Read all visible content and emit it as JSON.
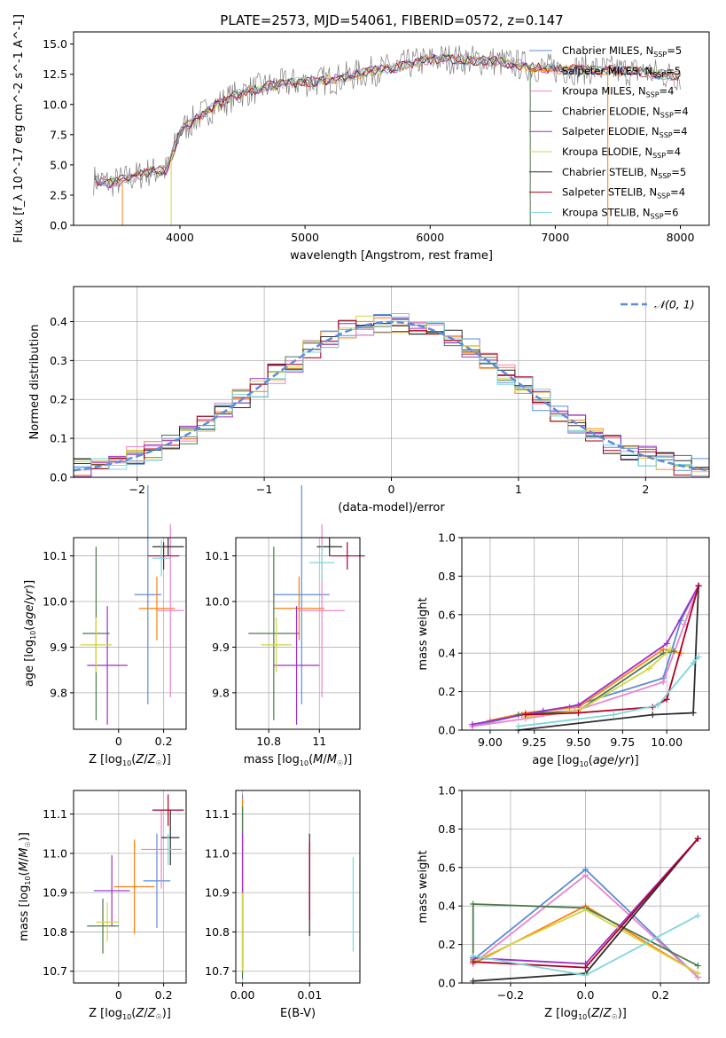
{
  "figure_title": "PLATE=2573, MJD=54061, FIBERID=0572, z=0.147",
  "colors": {
    "model_colors": [
      "#5b8dd9",
      "#ff7f0e",
      "#ee82c8",
      "#4c7a4c",
      "#9b30c8",
      "#d4d445",
      "#2d2d2d",
      "#b00020",
      "#7fd6dc"
    ],
    "data_color": "#7f7f7f",
    "gauss_color": "#5b8dd9"
  },
  "chart_data": [
    {
      "id": "spectrum",
      "type": "line",
      "xlabel": "wavelength [Angstrom, rest frame]",
      "ylabel": "Flux [f_λ 10^-17 erg cm^-2 s^-1 A^-1]",
      "xlim": [
        3150,
        8230
      ],
      "ylim": [
        0,
        16
      ],
      "xticks": [
        4000,
        5000,
        6000,
        7000,
        8000
      ],
      "yticks": [
        0.0,
        2.5,
        5.0,
        7.5,
        10.0,
        12.5,
        15.0
      ],
      "grid": false,
      "legend_position": "top-right",
      "legend": [
        {
          "base": "Chabrier MILES, N",
          "sub": "SSP",
          "tail": "=5"
        },
        {
          "base": "Salpeter MILES, N",
          "sub": "SSP",
          "tail": "=5"
        },
        {
          "base": "Kroupa MILES, N",
          "sub": "SSP",
          "tail": "=4"
        },
        {
          "base": "Chabrier ELODIE, N",
          "sub": "SSP",
          "tail": "=4"
        },
        {
          "base": "Salpeter ELODIE, N",
          "sub": "SSP",
          "tail": "=4"
        },
        {
          "base": "Kroupa ELODIE, N",
          "sub": "SSP",
          "tail": "=4"
        },
        {
          "base": "Chabrier STELIB, N",
          "sub": "SSP",
          "tail": "=5"
        },
        {
          "base": "Salpeter STELIB, N",
          "sub": "SSP",
          "tail": "=4"
        },
        {
          "base": "Kroupa STELIB, N",
          "sub": "SSP",
          "tail": "=6"
        }
      ],
      "continuum": {
        "x": [
          3300,
          3450,
          3600,
          3750,
          3900,
          4000,
          4150,
          4300,
          4500,
          4700,
          4900,
          5100,
          5300,
          5500,
          5700,
          5900,
          6100,
          6300,
          6500,
          6700,
          6900,
          7100,
          7300,
          7500,
          7700,
          7850,
          8000
        ],
        "y": [
          3.8,
          3.5,
          3.9,
          4.4,
          4.6,
          7.8,
          9.0,
          10.0,
          11.0,
          11.5,
          11.8,
          11.9,
          12.2,
          12.7,
          13.0,
          13.5,
          13.8,
          13.7,
          13.6,
          13.3,
          13.0,
          12.9,
          12.9,
          12.8,
          12.7,
          12.5,
          12.3
        ]
      }
    },
    {
      "id": "residuals",
      "type": "area",
      "xlabel": "(data-model)/error",
      "ylabel": "Normed distribution",
      "xlim": [
        -2.5,
        2.5
      ],
      "ylim": [
        0,
        0.49
      ],
      "xticks": [
        -2,
        -1,
        0,
        1,
        2
      ],
      "yticks": [
        0.0,
        0.1,
        0.2,
        0.3,
        0.4
      ],
      "grid": true,
      "legend_position": "top-right",
      "legend_label": "𝒩(0, 1)",
      "histogram_bins": 36
    },
    {
      "id": "age_vs_Z",
      "type": "scatter",
      "xlabel_html": "Z [log<tspan font-size='8' dy='3'>10</tspan><tspan dy='-3'>(</tspan><tspan font-style='italic'>Z</tspan>/<tspan font-style='italic'>Z</tspan><tspan font-size='8' dy='3'>☉</tspan><tspan dy='-3'>)]</tspan>",
      "ylabel_html": "age  [log<tspan font-size='8' dy='3'>10</tspan><tspan dy='-3'>(</tspan><tspan font-style='italic'>age</tspan>/<tspan font-style='italic'>yr</tspan>)]",
      "xlim": [
        -0.2,
        0.3
      ],
      "ylim": [
        9.72,
        10.14
      ],
      "xticks": [
        0.0,
        0.2
      ],
      "yticks": [
        9.8,
        9.9,
        10.0,
        10.1
      ],
      "grid": true,
      "points": [
        {
          "x": 0.13,
          "xerr": 0.06,
          "y": 10.015,
          "yerr": 0.24
        },
        {
          "x": 0.17,
          "xerr": 0.08,
          "y": 9.985,
          "yerr": 0.07
        },
        {
          "x": 0.23,
          "xerr": 0.06,
          "y": 9.98,
          "yerr": 0.19
        },
        {
          "x": -0.1,
          "xerr": 0.06,
          "y": 9.93,
          "yerr": 0.19
        },
        {
          "x": -0.05,
          "xerr": 0.09,
          "y": 9.86,
          "yerr": 0.13
        },
        {
          "x": -0.1,
          "xerr": 0.07,
          "y": 9.905,
          "yerr": 0.06
        },
        {
          "x": 0.22,
          "xerr": 0.07,
          "y": 10.12,
          "yerr": 0.02
        },
        {
          "x": 0.2,
          "xerr": 0.07,
          "y": 10.1,
          "yerr": 0.03
        },
        {
          "x": 0.19,
          "xerr": 0.04,
          "y": 10.095,
          "yerr": 0.04
        }
      ]
    },
    {
      "id": "age_vs_mass",
      "type": "scatter",
      "xlabel_html": "mass [log<tspan font-size='8' dy='3'>10</tspan><tspan dy='-3'>(</tspan><tspan font-style='italic'>M</tspan>/<tspan font-style='italic'>M</tspan><tspan font-size='8' dy='3'>☉</tspan><tspan dy='-3'>)]</tspan>",
      "xlim": [
        10.67,
        11.16
      ],
      "ylim": [
        9.72,
        10.14
      ],
      "xticks": [
        10.8,
        11.0
      ],
      "yticks": [
        9.8,
        9.9,
        10.0,
        10.1
      ],
      "grid": true,
      "points": [
        {
          "x": 10.93,
          "xerr": 0.11,
          "y": 10.015,
          "yerr": 0.24
        },
        {
          "x": 10.92,
          "xerr": 0.1,
          "y": 9.985,
          "yerr": 0.07
        },
        {
          "x": 11.01,
          "xerr": 0.09,
          "y": 9.98,
          "yerr": 0.19
        },
        {
          "x": 10.82,
          "xerr": 0.1,
          "y": 9.93,
          "yerr": 0.19
        },
        {
          "x": 10.91,
          "xerr": 0.09,
          "y": 9.86,
          "yerr": 0.13
        },
        {
          "x": 10.83,
          "xerr": 0.06,
          "y": 9.905,
          "yerr": 0.06
        },
        {
          "x": 11.04,
          "xerr": 0.05,
          "y": 10.12,
          "yerr": 0.02
        },
        {
          "x": 11.11,
          "xerr": 0.07,
          "y": 10.1,
          "yerr": 0.03
        },
        {
          "x": 11.01,
          "xerr": 0.05,
          "y": 10.085,
          "yerr": 0.04
        }
      ]
    },
    {
      "id": "mass_weight_vs_age",
      "type": "line",
      "xlabel_html": "age  [log<tspan font-size='8' dy='3'>10</tspan><tspan dy='-3'>(</tspan><tspan font-style='italic'>age</tspan>/<tspan font-style='italic'>yr</tspan>)]",
      "ylabel": "mass weight",
      "xlim": [
        8.84,
        10.24
      ],
      "ylim": [
        0,
        1.0
      ],
      "xticks": [
        9.0,
        9.25,
        9.5,
        9.75,
        10.0
      ],
      "xtick_labels": [
        "9.00",
        "9.25",
        "9.50",
        "9.75",
        "10.00"
      ],
      "yticks": [
        0.0,
        0.2,
        0.4,
        0.6,
        0.8,
        1.0
      ],
      "grid": true,
      "series": [
        {
          "x": [
            8.9,
            9.18,
            9.45,
            9.98,
            10.08,
            10.18
          ],
          "y": [
            0.02,
            0.08,
            0.12,
            0.27,
            0.57,
            0.75
          ]
        },
        {
          "x": [
            9.0,
            9.2,
            9.5,
            9.98,
            10.08
          ],
          "y": [
            0.05,
            0.09,
            0.12,
            0.42,
            0.4
          ]
        },
        {
          "x": [
            8.9,
            9.2,
            9.48,
            9.98,
            10.1,
            10.18
          ],
          "y": [
            0.02,
            0.06,
            0.1,
            0.25,
            0.55,
            0.75
          ]
        },
        {
          "x": [
            9.16,
            9.3,
            9.5,
            9.98,
            10.04
          ],
          "y": [
            0.08,
            0.09,
            0.1,
            0.4,
            0.41
          ]
        },
        {
          "x": [
            8.9,
            9.3,
            9.5,
            10.0,
            10.18
          ],
          "y": [
            0.03,
            0.1,
            0.13,
            0.45,
            0.75
          ]
        },
        {
          "x": [
            9.2,
            9.5,
            9.9,
            10.02
          ],
          "y": [
            0.07,
            0.1,
            0.32,
            0.42
          ]
        },
        {
          "x": [
            9.16,
            9.92,
            10.15,
            10.18
          ],
          "y": [
            0.0,
            0.08,
            0.09,
            0.75
          ]
        },
        {
          "x": [
            9.2,
            9.5,
            9.92,
            10.0,
            10.18
          ],
          "y": [
            0.08,
            0.09,
            0.12,
            0.16,
            0.75
          ]
        },
        {
          "x": [
            9.16,
            9.7,
            9.95,
            10.15,
            10.18
          ],
          "y": [
            0.02,
            0.08,
            0.13,
            0.35,
            0.38
          ]
        }
      ]
    },
    {
      "id": "mass_vs_Z",
      "type": "scatter",
      "xlabel_html": "Z [log<tspan font-size='8' dy='3'>10</tspan><tspan dy='-3'>(</tspan><tspan font-style='italic'>Z</tspan>/<tspan font-style='italic'>Z</tspan><tspan font-size='8' dy='3'>☉</tspan><tspan dy='-3'>)]</tspan>",
      "ylabel_html": "mass [log<tspan font-size='8' dy='3'>10</tspan><tspan dy='-3'>(</tspan><tspan font-style='italic'>M</tspan>/<tspan font-style='italic'>M</tspan><tspan font-size='8' dy='3'>☉</tspan><tspan dy='-3'>)]</tspan>",
      "xlim": [
        -0.2,
        0.3
      ],
      "ylim": [
        10.67,
        11.16
      ],
      "xticks": [
        0.0,
        0.2
      ],
      "yticks": [
        10.7,
        10.8,
        10.9,
        11.0,
        11.1
      ],
      "grid": true,
      "points": [
        {
          "x": 0.17,
          "xerr": 0.06,
          "y": 10.93,
          "yerr": 0.12
        },
        {
          "x": 0.07,
          "xerr": 0.09,
          "y": 10.915,
          "yerr": 0.12
        },
        {
          "x": 0.19,
          "xerr": 0.09,
          "y": 11.01,
          "yerr": 0.1
        },
        {
          "x": -0.07,
          "xerr": 0.07,
          "y": 10.815,
          "yerr": 0.07
        },
        {
          "x": -0.03,
          "xerr": 0.08,
          "y": 10.905,
          "yerr": 0.09
        },
        {
          "x": -0.05,
          "xerr": 0.05,
          "y": 10.825,
          "yerr": 0.05
        },
        {
          "x": 0.23,
          "xerr": 0.04,
          "y": 11.04,
          "yerr": 0.07
        },
        {
          "x": 0.22,
          "xerr": 0.07,
          "y": 11.11,
          "yerr": 0.04
        },
        {
          "x": 0.22,
          "xerr": 0.02,
          "y": 11.01,
          "yerr": 0.04
        }
      ]
    },
    {
      "id": "mass_vs_ebv",
      "type": "scatter",
      "xlabel": "E(B-V)",
      "xlim": [
        -0.001,
        0.0175
      ],
      "ylim": [
        10.67,
        11.16
      ],
      "xticks": [
        0.0,
        0.01
      ],
      "xtick_labels": [
        "0.00",
        "0.01"
      ],
      "yticks": [
        10.7,
        10.8,
        10.9,
        11.0,
        11.1
      ],
      "grid": true,
      "points": [
        {
          "x": 0.0,
          "y": 10.95,
          "yerr": 0.2
        },
        {
          "x": 0.0,
          "y": 10.92,
          "yerr": 0.22
        },
        {
          "x": 0.0,
          "y": 10.88,
          "yerr": 0.18
        },
        {
          "x": 0.0,
          "y": 10.9,
          "yerr": 0.22
        },
        {
          "x": 0.0,
          "y": 10.88,
          "yerr": 0.17
        },
        {
          "x": 0.0,
          "y": 10.8,
          "yerr": 0.1
        },
        {
          "x": 0.01,
          "y": 10.92,
          "yerr": 0.13
        },
        {
          "x": 0.01,
          "y": 10.93,
          "yerr": 0.1
        },
        {
          "x": 0.0165,
          "y": 10.87,
          "yerr": 0.12
        }
      ]
    },
    {
      "id": "mass_weight_vs_Z",
      "type": "line",
      "xlabel_html": "Z [log<tspan font-size='8' dy='3'>10</tspan><tspan dy='-3'>(</tspan><tspan font-style='italic'>Z</tspan>/<tspan font-style='italic'>Z</tspan><tspan font-size='8' dy='3'>☉</tspan><tspan dy='-3'>)]</tspan>",
      "ylabel": "mass weight",
      "xlim": [
        -0.33,
        0.33
      ],
      "ylim": [
        0,
        1.0
      ],
      "xticks": [
        -0.2,
        0.0,
        0.2
      ],
      "xtick_labels": [
        "−0.2",
        "0.0",
        "0.2"
      ],
      "yticks": [
        0.0,
        0.2,
        0.4,
        0.6,
        0.8,
        1.0
      ],
      "grid": true,
      "series": [
        {
          "x": [
            -0.3,
            0.0,
            0.3
          ],
          "y": [
            0.12,
            0.59,
            0.03
          ]
        },
        {
          "x": [
            -0.3,
            0.0,
            0.3
          ],
          "y": [
            0.1,
            0.4,
            0.05
          ]
        },
        {
          "x": [
            -0.3,
            0.0,
            0.3
          ],
          "y": [
            0.1,
            0.56,
            0.03
          ]
        },
        {
          "x": [
            -0.3,
            -0.3,
            0.0,
            0.3
          ],
          "y": [
            0.12,
            0.41,
            0.39,
            0.09
          ]
        },
        {
          "x": [
            -0.3,
            0.0,
            0.3
          ],
          "y": [
            0.13,
            0.1,
            0.75
          ]
        },
        {
          "x": [
            -0.3,
            0.0,
            0.3
          ],
          "y": [
            0.11,
            0.38,
            0.05
          ]
        },
        {
          "x": [
            -0.3,
            0.0,
            0.3
          ],
          "y": [
            0.01,
            0.05,
            0.75
          ]
        },
        {
          "x": [
            -0.3,
            0.0,
            0.3
          ],
          "y": [
            0.11,
            0.08,
            0.75
          ]
        },
        {
          "x": [
            -0.3,
            0.0,
            0.3
          ],
          "y": [
            0.14,
            0.04,
            0.35
          ]
        }
      ]
    }
  ]
}
